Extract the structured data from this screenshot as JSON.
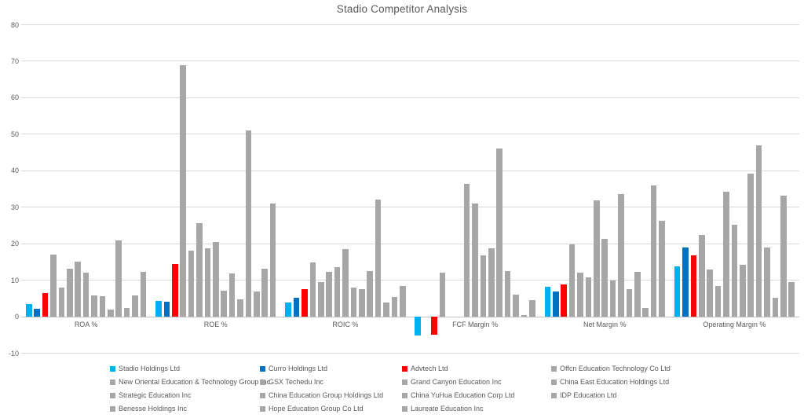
{
  "title": "Stadio Competitor Analysis",
  "chart_data": {
    "type": "bar",
    "title": "Stadio Competitor Analysis",
    "categories": [
      "ROA %",
      "ROE %",
      "ROIC %",
      "FCF Margin %",
      "Net Margin %",
      "Operating Margin %"
    ],
    "xlabel": "",
    "ylabel": "",
    "ylim": [
      -10,
      80
    ],
    "y_ticks": [
      80,
      70,
      60,
      50,
      40,
      30,
      20,
      10,
      0,
      -10
    ],
    "grid": true,
    "legend_position": "bottom",
    "series": [
      {
        "name": "Stadio Holdings Ltd",
        "color": "#00B0F0",
        "values": [
          3.4,
          4.3,
          3.8,
          -5.2,
          8.2,
          13.7
        ]
      },
      {
        "name": "Curro Holdings Ltd",
        "color": "#0070C0",
        "values": [
          2.2,
          4.0,
          5.2,
          0,
          6.9,
          18.9
        ]
      },
      {
        "name": "Advtech Ltd",
        "color": "#FF0000",
        "values": [
          6.4,
          14.4,
          7.6,
          -5.0,
          8.9,
          16.9
        ]
      },
      {
        "name": "Offcn Education Technology Co Ltd",
        "color": "#A6A6A6",
        "values": [
          17.0,
          69.0,
          14.9,
          12.1,
          19.8,
          22.4
        ]
      },
      {
        "name": "New Oriental Education & Technology Group Inc",
        "color": "#A6A6A6",
        "values": [
          8.0,
          18.1,
          9.5,
          0,
          12.0,
          12.9
        ]
      },
      {
        "name": "GSX Techedu Inc",
        "color": "#A6A6A6",
        "values": [
          13.2,
          25.7,
          12.3,
          0,
          10.7,
          8.4
        ]
      },
      {
        "name": "Grand Canyon Education Inc",
        "color": "#A6A6A6",
        "values": [
          15.0,
          18.8,
          13.6,
          36.5,
          31.8,
          34.2
        ]
      },
      {
        "name": "China East Education Holdings Ltd",
        "color": "#A6A6A6",
        "values": [
          12.0,
          20.4,
          18.6,
          31.0,
          21.4,
          25.3
        ]
      },
      {
        "name": "Strategic Education Inc",
        "color": "#A6A6A6",
        "values": [
          5.8,
          7.2,
          7.9,
          16.8,
          10.0,
          14.3
        ]
      },
      {
        "name": "China Education Group Holdings Ltd",
        "color": "#A6A6A6",
        "values": [
          5.7,
          11.9,
          7.6,
          18.8,
          33.7,
          39.3
        ]
      },
      {
        "name": "China YuHua Education Corp Ltd",
        "color": "#A6A6A6",
        "values": [
          1.9,
          4.7,
          12.6,
          46.0,
          7.6,
          46.9
        ]
      },
      {
        "name": "IDP Education Ltd",
        "color": "#A6A6A6",
        "values": [
          20.8,
          51.0,
          32.0,
          12.5,
          12.3,
          18.9
        ]
      },
      {
        "name": "Benesse Holdings Inc",
        "color": "#A6A6A6",
        "values": [
          2.4,
          6.9,
          3.9,
          6.1,
          2.3,
          5.2
        ]
      },
      {
        "name": "Hope Education Group Co Ltd",
        "color": "#A6A6A6",
        "values": [
          5.9,
          13.1,
          5.4,
          0.4,
          35.9,
          33.2
        ]
      },
      {
        "name": "Laureate Education Inc",
        "color": "#A6A6A6",
        "values": [
          12.2,
          31.0,
          8.4,
          4.5,
          26.3,
          9.5
        ]
      }
    ]
  },
  "colors": {
    "gridline": "#d9d9d9",
    "zero_axis": "#bfbfbf",
    "text": "#595959",
    "background": "#ffffff"
  }
}
